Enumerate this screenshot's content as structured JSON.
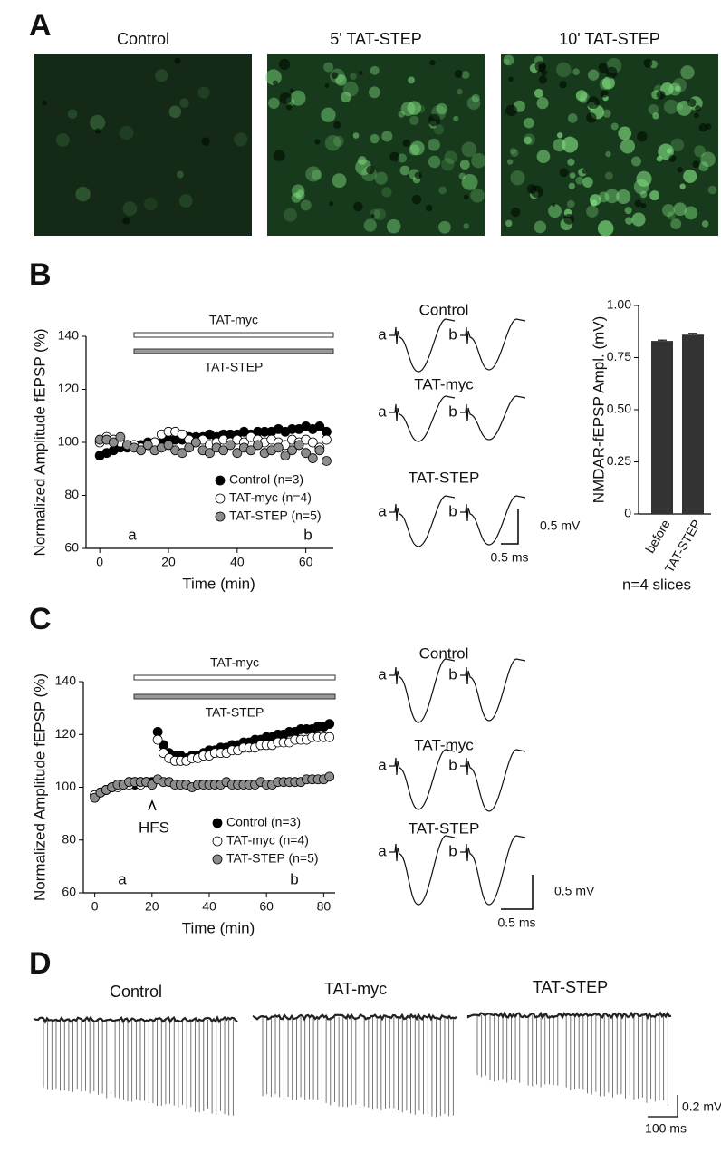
{
  "panels": {
    "A": {
      "label": "A",
      "titles": [
        "Control",
        "5' TAT-STEP",
        "10' TAT-STEP"
      ]
    },
    "B": {
      "label": "B",
      "traces": {
        "conditions": [
          "Control",
          "TAT-myc",
          "TAT-STEP"
        ],
        "sweeps": [
          "a",
          "b"
        ],
        "scale_y": "0.5 mV",
        "scale_x": "0.5 ms"
      }
    },
    "C": {
      "label": "C",
      "traces": {
        "conditions": [
          "Control",
          "TAT-myc",
          "TAT-STEP"
        ],
        "sweeps": [
          "a",
          "b"
        ],
        "scale_y": "0.5 mV",
        "scale_x": "0.5 ms"
      }
    },
    "D": {
      "label": "D",
      "titles": [
        "Control",
        "TAT-myc",
        "TAT-STEP"
      ],
      "scale_y": "0.2 mV",
      "scale_x": "100 ms"
    }
  },
  "chart_data": [
    {
      "type": "scatter",
      "xlabel": "Time (min)",
      "ylabel": "Normalized Amplitude fEPSP (%)",
      "treatments": [
        "TAT-myc",
        "TAT-STEP"
      ],
      "time_marks": [
        "a",
        "b"
      ],
      "xlim": [
        -4,
        68
      ],
      "xticks": [
        0,
        20,
        40,
        60
      ],
      "ylim": [
        60,
        140
      ],
      "yticks": [
        60,
        80,
        100,
        120,
        140
      ],
      "x": [
        0,
        2,
        4,
        6,
        8,
        10,
        12,
        14,
        16,
        18,
        20,
        22,
        24,
        26,
        28,
        30,
        32,
        34,
        36,
        38,
        40,
        42,
        44,
        46,
        48,
        50,
        52,
        54,
        56,
        58,
        60,
        62,
        64,
        66
      ],
      "series": [
        {
          "name": "Control (n=3)",
          "color": "#000000",
          "values": [
            95,
            96,
            97,
            98,
            98,
            99,
            99,
            100,
            100,
            100,
            101,
            101,
            101,
            102,
            102,
            102,
            103,
            102,
            103,
            103,
            103,
            104,
            103,
            104,
            104,
            104,
            105,
            104,
            105,
            105,
            106,
            105,
            106,
            104
          ]
        },
        {
          "name": "TAT-myc (n=4)",
          "color": "#ffffff",
          "values": [
            100,
            102,
            101,
            100,
            99,
            99,
            98,
            99,
            100,
            103,
            104,
            104,
            103,
            101,
            100,
            101,
            99,
            100,
            101,
            100,
            101,
            100,
            102,
            101,
            100,
            101,
            100,
            99,
            101,
            100,
            101,
            100,
            98,
            101
          ]
        },
        {
          "name": "TAT-STEP (n=5)",
          "color": "#8c8c8c",
          "values": [
            101,
            101,
            100,
            102,
            99,
            98,
            97,
            99,
            97,
            98,
            99,
            97,
            96,
            98,
            100,
            97,
            96,
            98,
            97,
            99,
            96,
            98,
            97,
            99,
            96,
            97,
            98,
            95,
            97,
            99,
            96,
            94,
            97,
            93
          ]
        }
      ]
    },
    {
      "type": "bar",
      "ylabel": "NMDAR-fEPSP Ampl. (mV)",
      "xlabel": "n=4 slices",
      "categories": [
        "before",
        "TAT-STEP"
      ],
      "values": [
        0.83,
        0.86
      ],
      "errors": [
        0.004,
        0.006
      ],
      "color": "#333333",
      "ylim": [
        0,
        1
      ],
      "yticks": [
        0,
        0.25,
        {
          "value": 0.5,
          "label": "0.50"
        },
        0.75,
        {
          "value": 1,
          "label": "1.00"
        }
      ]
    },
    {
      "type": "scatter",
      "xlabel": "Time (min)",
      "ylabel": "Normalized Amplitude fEPSP (%)",
      "treatments": [
        "TAT-myc",
        "TAT-STEP"
      ],
      "time_marks": [
        "a",
        "b"
      ],
      "event": "HFS",
      "xlim": [
        -4,
        84
      ],
      "xticks": [
        0,
        20,
        40,
        60,
        80
      ],
      "ylim": [
        60,
        140
      ],
      "yticks": [
        60,
        80,
        100,
        120,
        140
      ],
      "x": [
        0,
        2,
        4,
        6,
        8,
        10,
        12,
        14,
        16,
        18,
        20,
        22,
        24,
        26,
        28,
        30,
        32,
        34,
        36,
        38,
        40,
        42,
        44,
        46,
        48,
        50,
        52,
        54,
        56,
        58,
        60,
        62,
        64,
        66,
        68,
        70,
        72,
        74,
        76,
        78,
        80,
        82
      ],
      "series": [
        {
          "name": "Control (n=3)",
          "color": "#000000",
          "values": [
            97,
            98,
            99,
            100,
            101,
            101,
            102,
            101,
            102,
            102,
            102,
            121,
            116,
            113,
            112,
            112,
            111,
            112,
            112,
            113,
            114,
            114,
            115,
            115,
            116,
            116,
            117,
            117,
            118,
            118,
            119,
            119,
            120,
            120,
            121,
            121,
            122,
            122,
            122,
            123,
            123,
            124
          ]
        },
        {
          "name": "TAT-myc (n=4)",
          "color": "#ffffff",
          "values": [
            97,
            98,
            99,
            100,
            100,
            101,
            101,
            102,
            101,
            102,
            101,
            118,
            113,
            111,
            110,
            110,
            110,
            111,
            111,
            112,
            112,
            113,
            113,
            113,
            114,
            114,
            115,
            115,
            115,
            116,
            116,
            116,
            117,
            117,
            117,
            118,
            118,
            118,
            119,
            119,
            119,
            119
          ]
        },
        {
          "name": "TAT-STEP (n=5)",
          "color": "#8c8c8c",
          "values": [
            96,
            98,
            99,
            100,
            101,
            101,
            102,
            102,
            102,
            102,
            101,
            103,
            102,
            102,
            101,
            101,
            101,
            100,
            101,
            101,
            101,
            101,
            101,
            102,
            101,
            101,
            101,
            101,
            101,
            102,
            101,
            101,
            102,
            102,
            102,
            102,
            102,
            103,
            103,
            103,
            103,
            104
          ]
        }
      ]
    }
  ]
}
